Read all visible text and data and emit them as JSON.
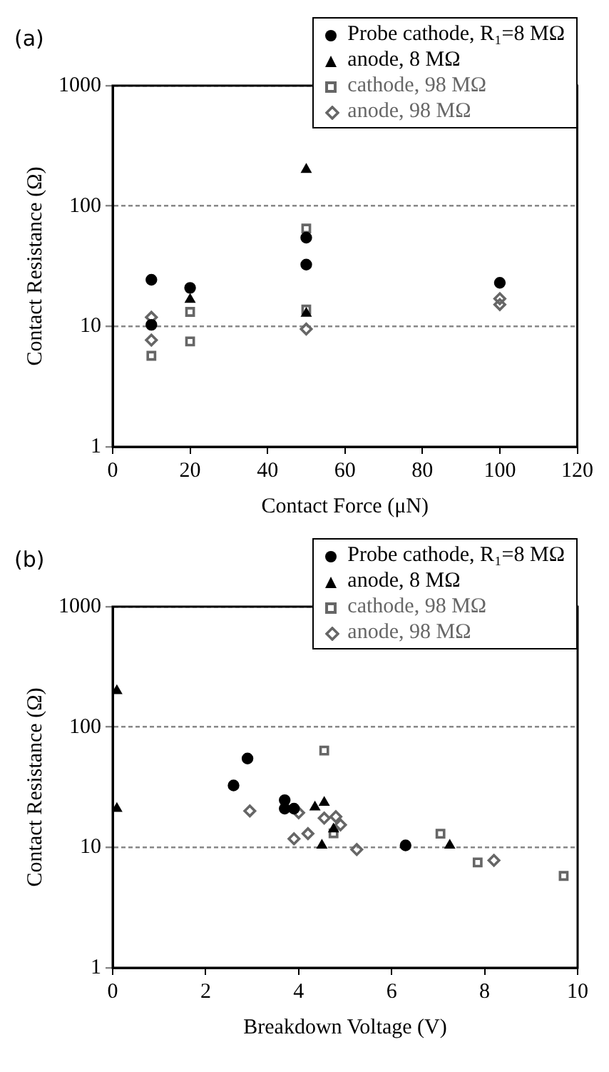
{
  "chart_data": [
    {
      "type": "scatter",
      "xlabel": "Contact Force (μN)",
      "ylabel": "Contact Resistance (Ω)",
      "annotations": [
        "(a)"
      ],
      "log": "y",
      "grid": "y",
      "line_style": "dashed",
      "legend": "top right",
      "xlim": [
        0,
        120
      ],
      "xticks": [
        0,
        20,
        40,
        60,
        80,
        100,
        120
      ],
      "ylim": [
        1,
        1000
      ],
      "yticks": [
        1,
        10,
        100,
        1000
      ],
      "series": [
        {
          "name": "Probe cathode, R₁=8 MΩ",
          "color": "#000000",
          "marker": "circle",
          "x": [
            10,
            10,
            20,
            50,
            50,
            100
          ],
          "values": [
            24.4,
            10.3,
            20.9,
            54.6,
            32.6,
            23
          ]
        },
        {
          "name": "anode, 8 MΩ",
          "color": "#000000",
          "marker": "triangle",
          "x": [
            20,
            50,
            50
          ],
          "values": [
            16.7,
            201,
            12.8
          ]
        },
        {
          "name": "cathode, 98 MΩ",
          "color": "#666666",
          "marker": "square",
          "x": [
            10,
            20,
            20,
            50,
            50
          ],
          "values": [
            5.7,
            13.2,
            7.5,
            65,
            13.8
          ]
        },
        {
          "name": "anode, 98 MΩ",
          "color": "#666666",
          "marker": "diamond",
          "x": [
            10,
            10,
            50,
            100,
            100
          ],
          "values": [
            11.9,
            7.7,
            9.5,
            15.2,
            17
          ]
        }
      ]
    },
    {
      "type": "scatter",
      "xlabel": "Breakdown Voltage (V)",
      "ylabel": "Contact Resistance (Ω)",
      "annotations": [
        "(b)"
      ],
      "log": "y",
      "grid": "y",
      "line_style": "dashed",
      "legend": "top right",
      "xlim": [
        0,
        10
      ],
      "xticks": [
        0,
        2,
        4,
        6,
        8,
        10
      ],
      "ylim": [
        1,
        1000
      ],
      "yticks": [
        1,
        10,
        100,
        1000
      ],
      "series": [
        {
          "name": "Probe cathode, R₁=8 MΩ",
          "color": "#000000",
          "marker": "circle",
          "x": [
            2.6,
            2.9,
            3.7,
            3.7,
            3.9,
            6.3
          ],
          "values": [
            32.7,
            54.8,
            24.7,
            21,
            21,
            10.4
          ]
        },
        {
          "name": "anode, 8 MΩ",
          "color": "#000000",
          "marker": "triangle",
          "x": [
            0.09,
            0.09,
            4.35,
            4.55,
            4.5,
            4.75,
            7.25
          ],
          "values": [
            200,
            21,
            21.6,
            23.6,
            10.4,
            14.2,
            10.4
          ]
        },
        {
          "name": "cathode, 98 MΩ",
          "color": "#666666",
          "marker": "square",
          "x": [
            4.55,
            4.75,
            7.05,
            7.85,
            9.7
          ],
          "values": [
            63.8,
            13.1,
            13,
            7.5,
            5.8
          ]
        },
        {
          "name": "anode, 98 MΩ",
          "color": "#666666",
          "marker": "diamond",
          "x": [
            2.95,
            3.9,
            4.2,
            4.0,
            4.55,
            4.8,
            4.9,
            5.25,
            8.2
          ],
          "values": [
            20.1,
            11.8,
            13,
            19.4,
            17.5,
            18,
            15.4,
            9.6,
            7.8
          ]
        }
      ]
    }
  ]
}
